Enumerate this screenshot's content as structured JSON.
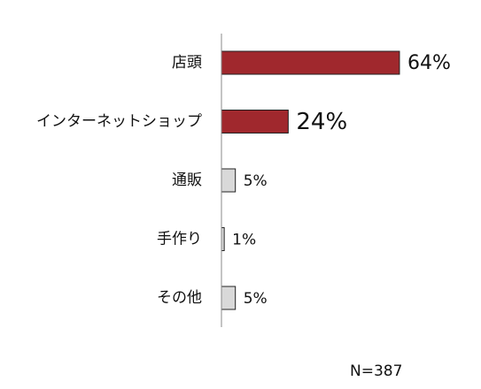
{
  "chart_data": {
    "type": "bar",
    "orientation": "horizontal",
    "categories": [
      "店頭",
      "インターネットショップ",
      "通販",
      "手作り",
      "その他"
    ],
    "values": [
      64,
      24,
      5,
      1,
      5
    ],
    "value_labels": [
      "64%",
      "24%",
      "5%",
      "1%",
      "5%"
    ],
    "colors": [
      "#a0282d",
      "#a0282d",
      "#d9d9d9",
      "#d9d9d9",
      "#d9d9d9"
    ],
    "value_label_colors": [
      "#e02020",
      "#e02020",
      "#111111",
      "#111111",
      "#111111"
    ],
    "annotation": "N=387"
  }
}
